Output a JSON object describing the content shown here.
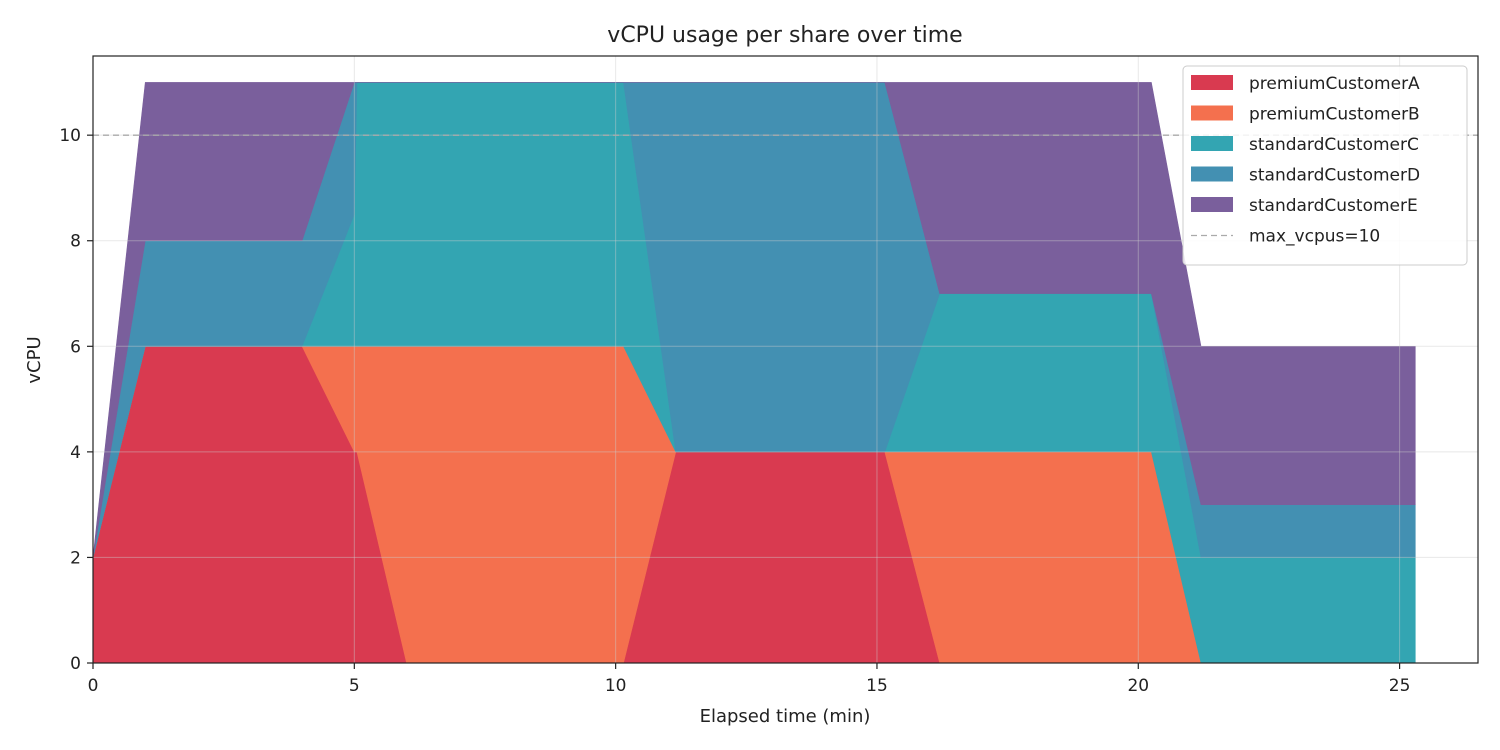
{
  "chart_data": {
    "type": "area",
    "stacked": true,
    "title": "vCPU usage per share over time",
    "xlabel": "Elapsed time (min)",
    "ylabel": "vCPU",
    "xlim": [
      0,
      26.5
    ],
    "ylim": [
      0,
      11.5
    ],
    "xticks": [
      0,
      5,
      10,
      15,
      20,
      25
    ],
    "yticks": [
      0,
      2,
      4,
      6,
      8,
      10
    ],
    "grid": true,
    "legend_position": "top-right",
    "x": [
      0,
      1,
      4,
      5,
      5.05,
      6,
      6.05,
      10,
      10.15,
      11.15,
      15.15,
      16.2,
      20.2,
      20.25,
      21.2,
      21.25,
      25.3
    ],
    "series": [
      {
        "name": "premiumCustomerA",
        "color": "#d93a50",
        "values": [
          2,
          6,
          6,
          4,
          4,
          0,
          0,
          0,
          0,
          4,
          4,
          0,
          0,
          0,
          0,
          0,
          0
        ]
      },
      {
        "name": "premiumCustomerB",
        "color": "#f4704e",
        "values": [
          0,
          0,
          0,
          2,
          2,
          6,
          6,
          6,
          6,
          0,
          0,
          4,
          4,
          4,
          0,
          0,
          0
        ]
      },
      {
        "name": "standardCustomerC",
        "color": "#33a5b2",
        "values": [
          0,
          0,
          0,
          2.5,
          5,
          5,
          5,
          5,
          5,
          0,
          0,
          3,
          3,
          3,
          2,
          2,
          2
        ]
      },
      {
        "name": "standardCustomerD",
        "color": "#4390b2",
        "values": [
          0,
          2,
          2,
          2.5,
          0,
          0,
          0,
          0,
          0,
          7,
          7,
          0,
          0,
          0,
          1,
          1,
          1
        ]
      },
      {
        "name": "standardCustomerE",
        "color": "#7a5f9c",
        "values": [
          0,
          3,
          3,
          0,
          0,
          0,
          0,
          0,
          0,
          0,
          0,
          4,
          4,
          4,
          3,
          3,
          3
        ]
      }
    ],
    "reference_line": {
      "label": "max_vcpus=10",
      "y": 10,
      "color": "#aaaaaa",
      "style": "dashed"
    }
  }
}
